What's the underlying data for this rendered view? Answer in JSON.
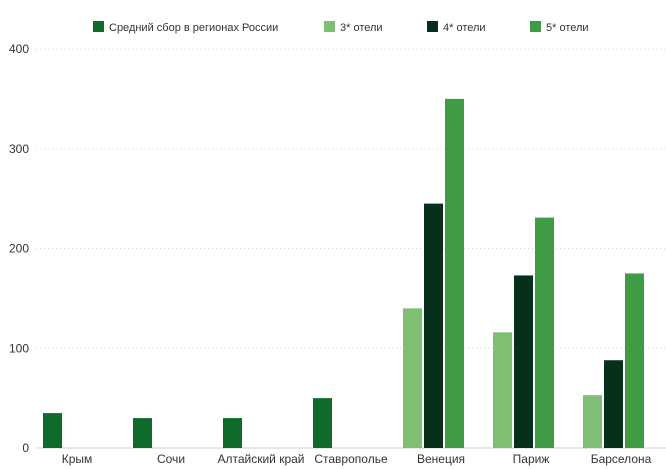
{
  "chart_data": {
    "type": "bar",
    "categories": [
      "Крым",
      "Сочи",
      "Алтайский край",
      "Ставрополье",
      "Венеция",
      "Париж",
      "Барселона"
    ],
    "series": [
      {
        "name": "Средний сбор в  регионах России",
        "color": "#0f6b2a",
        "values": [
          35,
          30,
          30,
          50,
          null,
          null,
          null
        ]
      },
      {
        "name": "3* отели",
        "color": "#7fbf73",
        "values": [
          null,
          null,
          null,
          null,
          140,
          116,
          53
        ]
      },
      {
        "name": "4* отели",
        "color": "#06301a",
        "values": [
          null,
          null,
          null,
          null,
          245,
          173,
          88
        ]
      },
      {
        "name": "5* отели",
        "color": "#3f9c45",
        "values": [
          null,
          null,
          null,
          null,
          350,
          231,
          175
        ]
      }
    ],
    "ylim": [
      0,
      400
    ],
    "yticks": [
      0,
      100,
      200,
      300,
      400
    ],
    "grid": true,
    "legend_position": "top"
  }
}
